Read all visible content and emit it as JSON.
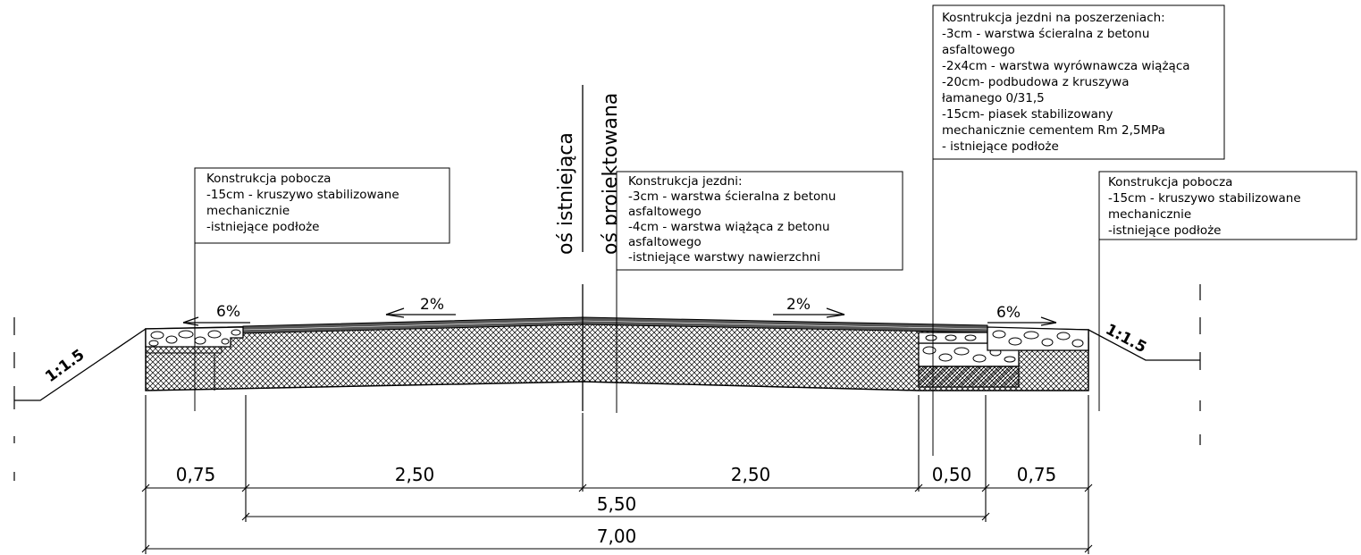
{
  "axis_labels": {
    "existing": "oś istniejąca",
    "designed": "oś projektowana"
  },
  "notes": {
    "left_shoulder": {
      "lines": [
        "Konstrukcja pobocza",
        "-15cm - kruszywo stabilizowane",
        "mechanicznie",
        "-istniejące podłoże"
      ]
    },
    "roadway": {
      "lines": [
        "Konstrukcja jezdni:",
        "-3cm - warstwa ścieralna z betonu",
        "asfaltowego",
        "-4cm - warstwa wiążąca z betonu",
        "asfaltowego",
        "-istniejące warstwy nawierzchni"
      ]
    },
    "widening": {
      "lines": [
        "Kosntrukcja jezdni na poszerzeniach:",
        "-3cm - warstwa ścieralna z betonu",
        "asfaltowego",
        "-2x4cm - warstwa wyrównawcza wiążąca",
        "-20cm- podbudowa z kruszywa",
        "łamanego 0/31,5",
        "-15cm- piasek stabilizowany",
        "mechanicznie cementem Rm 2,5MPa",
        "- istniejące podłoże"
      ]
    },
    "right_shoulder": {
      "lines": [
        "Konstrukcja pobocza",
        "-15cm - kruszywo stabilizowane",
        "mechanicznie",
        "-istniejące podłoże"
      ]
    }
  },
  "slopes": {
    "left_shoulder": "6%",
    "left_lane": "2%",
    "right_lane": "2%",
    "right_shoulder": "6%"
  },
  "embankment": {
    "left": "1:1.5",
    "right": "1:1.5"
  },
  "dimensions": {
    "row1": [
      "0,75",
      "2,50",
      "2,50",
      "0,50",
      "0,75"
    ],
    "row2": "5,50",
    "row3": "7,00"
  },
  "colors": {
    "line": "#000000",
    "background": "#ffffff"
  }
}
